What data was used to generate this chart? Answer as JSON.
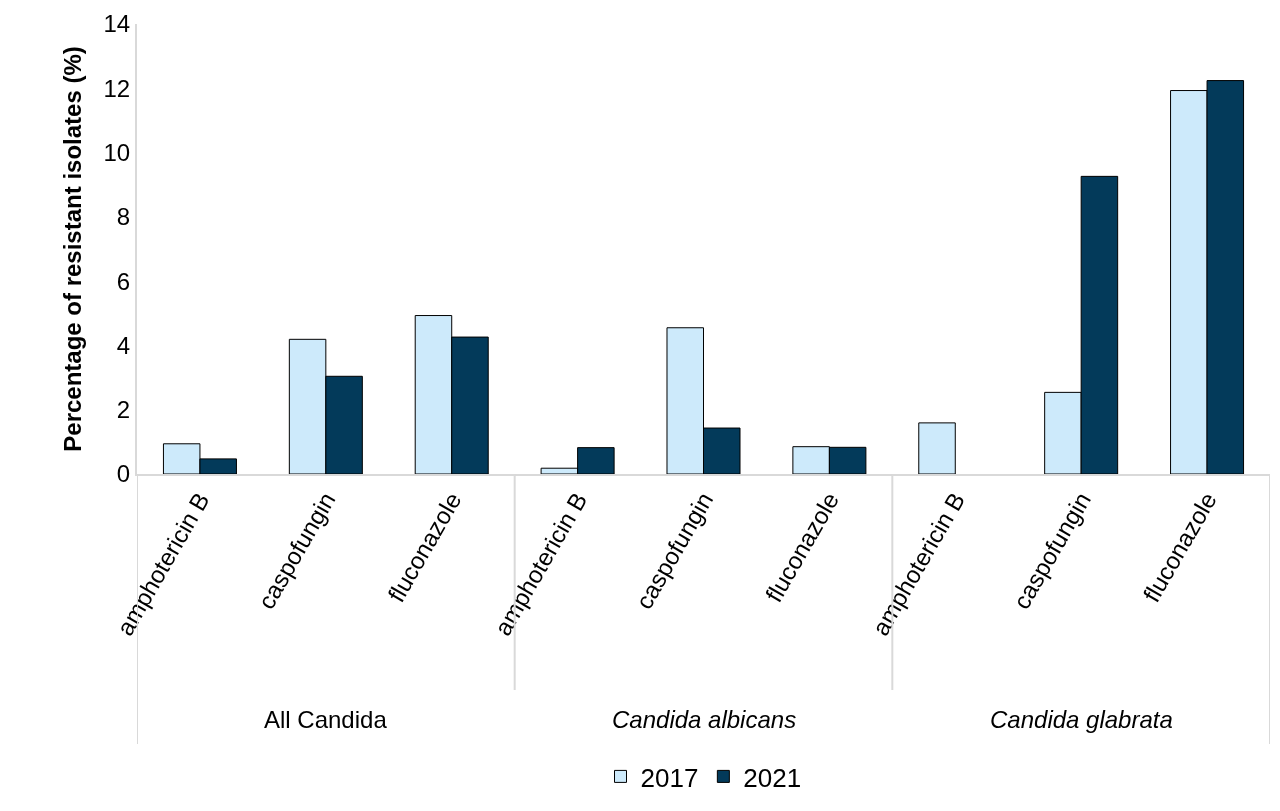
{
  "chart_data": {
    "type": "bar",
    "ylabel": "Percentage of resistant isolates (%)",
    "categories": [
      "amphotericin B",
      "caspofungin",
      "fluconazole",
      "amphotericin B",
      "caspofungin",
      "fluconazole",
      "amphotericin B",
      "caspofungin",
      "fluconazole"
    ],
    "series": [
      {
        "name": "2017",
        "color": "#cdeafb",
        "values": [
          0.94,
          4.19,
          4.93,
          0.18,
          4.55,
          0.85,
          1.59,
          2.54,
          11.93
        ]
      },
      {
        "name": "2021",
        "color": "#033a5a",
        "values": [
          0.47,
          3.04,
          4.26,
          0.82,
          1.43,
          0.83,
          null,
          9.26,
          12.24
        ]
      }
    ],
    "annotations": [
      "All Candida",
      "Candida albicans",
      "Candida glabrata"
    ],
    "ylim": [
      0,
      14
    ],
    "yticks": [
      0,
      2,
      4,
      6,
      8,
      10,
      12,
      14
    ],
    "legend": "bottom"
  }
}
